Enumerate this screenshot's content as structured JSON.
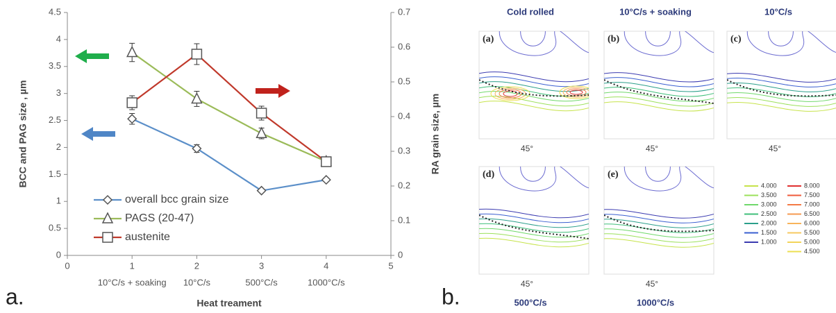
{
  "chart_data": {
    "type": "line",
    "panel_label": "a.",
    "x_label": "Heat treament",
    "y_label": "BCC and PAG size , µm",
    "y2_label": "RA grain size, µm",
    "x": [
      1,
      2,
      3,
      4
    ],
    "categories": [
      "10°C/s + soaking",
      "10°C/s",
      "500°C/s",
      "1000°C/s"
    ],
    "xlim": [
      0,
      5
    ],
    "xticks": [
      0,
      1,
      2,
      3,
      4,
      5
    ],
    "ylim": [
      0,
      4.5
    ],
    "yticks": [
      0,
      0.5,
      1,
      1.5,
      2,
      2.5,
      3,
      3.5,
      4,
      4.5
    ],
    "y2lim": [
      0,
      0.7
    ],
    "y2ticks": [
      0,
      0.1,
      0.2,
      0.3,
      0.4,
      0.5,
      0.6,
      0.7
    ],
    "grid": false,
    "legend": "lower left",
    "series": [
      {
        "name": "overall bcc grain size",
        "color": "#5b8fc9",
        "marker": "diamond",
        "values": [
          2.53,
          1.98,
          1.2,
          1.4
        ],
        "errors": [
          0.1,
          0.07,
          0.03,
          0.03
        ]
      },
      {
        "name": "PAGS (20-47)",
        "color": "#9bbb59",
        "marker": "triangle",
        "values": [
          3.76,
          2.9,
          2.26,
          1.74
        ],
        "errors": [
          0.17,
          0.14,
          0.1,
          0.04
        ]
      },
      {
        "name": "austenite",
        "color": "#c0392b",
        "marker": "square",
        "axis": "y2",
        "values": [
          0.44,
          0.58,
          0.41,
          0.27
        ],
        "errors": [
          0.02,
          0.03,
          0.02,
          0.01
        ]
      }
    ]
  },
  "figure_b": {
    "panel_label": "b.",
    "panels": [
      {
        "label": "(a)",
        "title": "Cold rolled",
        "angle": "45°"
      },
      {
        "label": "(b)",
        "title": "10°C/s + soaking",
        "angle": "45°"
      },
      {
        "label": "(c)",
        "title": "10°C/s",
        "angle": "45°"
      },
      {
        "label": "(d)",
        "title": "500°C/s",
        "angle": "45°"
      },
      {
        "label": "(e)",
        "title": "1000°C/s",
        "angle": "45°"
      }
    ],
    "legend": [
      {
        "label": "4.000",
        "color": "#c6e34a"
      },
      {
        "label": "3.500",
        "color": "#9be05a"
      },
      {
        "label": "3.000",
        "color": "#6fd86a"
      },
      {
        "label": "2.500",
        "color": "#3fbf7a"
      },
      {
        "label": "2.000",
        "color": "#2a9f8a"
      },
      {
        "label": "1.500",
        "color": "#3a5fd0"
      },
      {
        "label": "1.000",
        "color": "#3a3ab0"
      },
      {
        "label": "8.000",
        "color": "#e03030"
      },
      {
        "label": "7.500",
        "color": "#ef5a3a"
      },
      {
        "label": "7.000",
        "color": "#f47a45"
      },
      {
        "label": "6.500",
        "color": "#f69a50"
      },
      {
        "label": "6.000",
        "color": "#f8b45a"
      },
      {
        "label": "5.500",
        "color": "#f6c860"
      },
      {
        "label": "5.000",
        "color": "#f2d45a"
      },
      {
        "label": "4.500",
        "color": "#ecdf50"
      }
    ]
  }
}
